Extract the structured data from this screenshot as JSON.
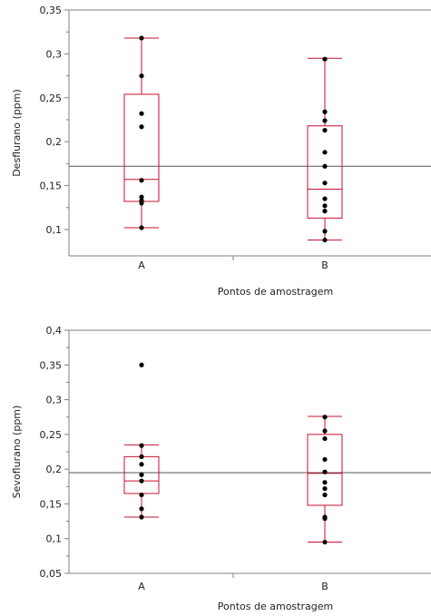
{
  "chart_data": [
    {
      "type": "box",
      "xlabel": "Pontos de amostragem",
      "ylabel": "Desflurano (ppm)",
      "ylim": [
        0.07,
        0.35
      ],
      "yticks": [
        0.1,
        0.15,
        0.2,
        0.25,
        0.3,
        0.35
      ],
      "ytick_labels": [
        "0,1",
        "0,15",
        "0,2",
        "0,25",
        "0,3",
        "0,35"
      ],
      "categories": [
        "A",
        "B"
      ],
      "reference_line": 0.172,
      "boxes": [
        {
          "category": "A",
          "min": 0.102,
          "q1": 0.132,
          "median": 0.157,
          "q3": 0.254,
          "max": 0.318
        },
        {
          "category": "B",
          "min": 0.088,
          "q1": 0.113,
          "median": 0.146,
          "q3": 0.218,
          "max": 0.295
        }
      ],
      "points": [
        {
          "category": "A",
          "values": [
            0.318,
            0.275,
            0.232,
            0.217,
            0.156,
            0.137,
            0.133,
            0.13,
            0.102
          ]
        },
        {
          "category": "B",
          "values": [
            0.294,
            0.234,
            0.224,
            0.213,
            0.188,
            0.172,
            0.153,
            0.135,
            0.127,
            0.121,
            0.098,
            0.088
          ]
        }
      ],
      "colors": {
        "box": "#c8102e",
        "point": "#000000",
        "reference": "#555555",
        "axis": "#808080"
      }
    },
    {
      "type": "box",
      "xlabel": "Pontos de amostragem",
      "ylabel": "Sevoflurano (ppm)",
      "ylim": [
        0.05,
        0.4
      ],
      "yticks": [
        0.05,
        0.1,
        0.15,
        0.2,
        0.25,
        0.3,
        0.35,
        0.4
      ],
      "ytick_labels": [
        "0,05",
        "0,1",
        "0,15",
        "0,2",
        "0,25",
        "0,3",
        "0,35",
        "0,4"
      ],
      "categories": [
        "A",
        "B"
      ],
      "reference_line": 0.195,
      "boxes": [
        {
          "category": "A",
          "min": 0.131,
          "q1": 0.165,
          "median": 0.183,
          "q3": 0.218,
          "max": 0.235
        },
        {
          "category": "B",
          "min": 0.095,
          "q1": 0.148,
          "median": 0.194,
          "q3": 0.25,
          "max": 0.276
        }
      ],
      "points": [
        {
          "category": "A",
          "values": [
            0.35,
            0.234,
            0.218,
            0.207,
            0.192,
            0.183,
            0.163,
            0.143,
            0.131
          ]
        },
        {
          "category": "B",
          "values": [
            0.275,
            0.255,
            0.244,
            0.214,
            0.196,
            0.181,
            0.172,
            0.163,
            0.131,
            0.129,
            0.095
          ]
        }
      ],
      "colors": {
        "box": "#c8102e",
        "point": "#000000",
        "reference": "#555555",
        "axis": "#808080"
      }
    }
  ]
}
